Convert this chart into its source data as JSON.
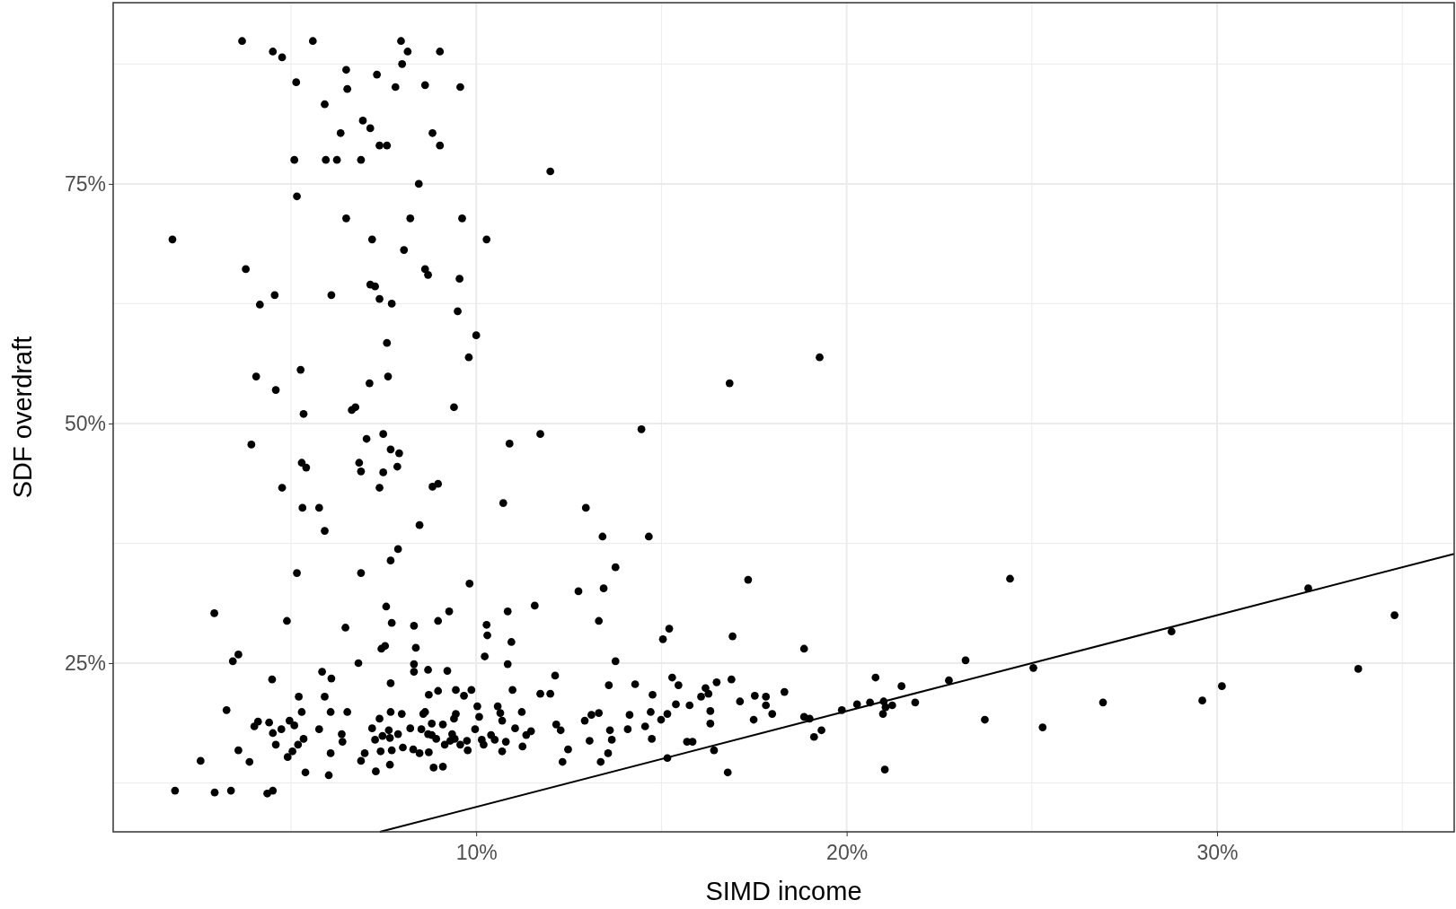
{
  "chart_data": {
    "type": "scatter",
    "xlabel": "SIMD income",
    "ylabel": "SDF overdraft",
    "xlim": [
      0.2,
      36.4
    ],
    "ylim": [
      7.4,
      93.9
    ],
    "xticks": [
      {
        "value": 5,
        "label": null
      },
      {
        "value": 10,
        "label": "10%"
      },
      {
        "value": 15,
        "label": null
      },
      {
        "value": 20,
        "label": "20%"
      },
      {
        "value": 25,
        "label": null
      },
      {
        "value": 30,
        "label": "30%"
      },
      {
        "value": 35,
        "label": null
      }
    ],
    "yticks": [
      {
        "value": 12.5,
        "label": null
      },
      {
        "value": 25,
        "label": "25%"
      },
      {
        "value": 37.5,
        "label": null
      },
      {
        "value": 50,
        "label": "50%"
      },
      {
        "value": 62.5,
        "label": null
      },
      {
        "value": 75,
        "label": "75%"
      },
      {
        "value": 87.5,
        "label": null
      }
    ],
    "grid": true,
    "series": [
      {
        "color": "#000000",
        "marker": "circle",
        "x": [
          3.68,
          4.51,
          4.76,
          5.59,
          7.97,
          8.15,
          9.02,
          8.0,
          6.49,
          7.32,
          5.14,
          7.82,
          8.62,
          9.57,
          6.52,
          5.91,
          6.94,
          7.14,
          6.34,
          8.82,
          7.39,
          7.59,
          9.02,
          5.09,
          5.94,
          6.24,
          6.89,
          12.0,
          8.45,
          5.16,
          6.49,
          8.22,
          9.62,
          1.8,
          7.19,
          10.28,
          8.05,
          3.78,
          8.62,
          8.7,
          9.55,
          7.14,
          7.27,
          4.56,
          6.09,
          7.39,
          4.16,
          7.72,
          9.5,
          10.0,
          7.59,
          19.27,
          9.8,
          5.26,
          4.06,
          7.62,
          16.84,
          7.12,
          4.59,
          6.74,
          9.4,
          5.34,
          6.64,
          14.46,
          7.49,
          11.73,
          7.04,
          7.69,
          7.92,
          3.93,
          10.9,
          5.29,
          6.84,
          5.41,
          7.87,
          6.89,
          7.49,
          8.97,
          8.82,
          4.76,
          7.39,
          10.73,
          12.96,
          5.31,
          5.76,
          5.91,
          8.47,
          13.41,
          14.66,
          7.89,
          7.69,
          13.76,
          5.16,
          6.89,
          17.34,
          24.41,
          9.82,
          13.44,
          12.76,
          32.46,
          7.57,
          9.27,
          10.85,
          11.58,
          2.93,
          34.79,
          10.28,
          13.31,
          4.89,
          8.97,
          7.72,
          8.32,
          6.47,
          15.21,
          10.3,
          28.77,
          16.92,
          15.04,
          10.95,
          7.54,
          7.44,
          8.37,
          18.85,
          3.58,
          10.23,
          13.76,
          23.21,
          3.43,
          6.82,
          10.85,
          8.32,
          25.04,
          33.81,
          8.32,
          9.22,
          5.84,
          8.7,
          12.13,
          6.09,
          15.29,
          20.78,
          16.89,
          22.76,
          4.49,
          7.69,
          13.58,
          16.49,
          15.46,
          21.48,
          14.29,
          30.13,
          10.98,
          16.19,
          9.45,
          9.87,
          8.97,
          18.32,
          11.73,
          12.0,
          14.76,
          16.27,
          17.52,
          17.82,
          9.67,
          8.72,
          5.21,
          5.91,
          16.07,
          17.12,
          29.6,
          26.92,
          21.85,
          21.0,
          20.28,
          20.63,
          21.05,
          21.23,
          15.76,
          15.39,
          17.82,
          10.03,
          10.58,
          19.87,
          20.98,
          17.99,
          16.32,
          3.26,
          5.29,
          6.07,
          6.52,
          7.69,
          7.99,
          8.62,
          8.57,
          9.45,
          10.65,
          11.23,
          13.31,
          13.11,
          14.14,
          14.71,
          15.16,
          18.85,
          19.0,
          23.73,
          17.49,
          7.39,
          9.4,
          10.08,
          10.7,
          12.93,
          14.99,
          4.96,
          4.11,
          4.41,
          4.01,
          5.09,
          8.8,
          9.1,
          12.16,
          14.56,
          16.32,
          25.29,
          7.19,
          7.64,
          8.22,
          8.52,
          4.74,
          9.97,
          11.05,
          5.76,
          12.28,
          11.48,
          13.61,
          14.09,
          19.32,
          4.51,
          6.37,
          7.47,
          7.89,
          8.7,
          8.8,
          9.35,
          11.35,
          10.4,
          19.12,
          5.34,
          7.27,
          7.67,
          8.92,
          9.3,
          9.42,
          9.75,
          10.15,
          10.5,
          10.8,
          13.66,
          13.06,
          14.74,
          15.69,
          15.84,
          3.58,
          5.19,
          6.39,
          8.02,
          9.15,
          9.57,
          10.2,
          11.25,
          4.59,
          5.04,
          6.07,
          6.99,
          7.42,
          7.72,
          8.3,
          8.47,
          8.72,
          9.77,
          10.7,
          12.48,
          13.56,
          15.16,
          4.91,
          6.89,
          2.56,
          3.88,
          7.67,
          12.33,
          13.36,
          8.85,
          9.1,
          16.42,
          7.29,
          5.39,
          6.02,
          16.79,
          21.03,
          1.87,
          2.94,
          3.38,
          4.36,
          4.51
        ],
        "values": [
          89.9,
          88.8,
          88.2,
          89.9,
          89.9,
          88.8,
          88.8,
          87.5,
          86.9,
          86.4,
          85.6,
          85.1,
          85.3,
          85.1,
          84.9,
          83.3,
          81.6,
          80.8,
          80.3,
          80.3,
          79.0,
          79.0,
          79.0,
          77.5,
          77.5,
          77.5,
          77.5,
          76.3,
          75.0,
          73.7,
          71.4,
          71.4,
          71.4,
          69.2,
          69.2,
          69.2,
          68.1,
          66.1,
          66.1,
          65.5,
          65.1,
          64.5,
          64.3,
          63.4,
          63.4,
          63.0,
          62.4,
          62.5,
          61.7,
          59.2,
          58.4,
          56.9,
          56.9,
          55.6,
          54.9,
          54.9,
          54.2,
          54.2,
          53.5,
          51.7,
          51.7,
          51.0,
          51.4,
          49.4,
          48.9,
          48.9,
          48.4,
          47.3,
          46.9,
          47.8,
          47.9,
          45.9,
          45.9,
          45.4,
          45.5,
          45.0,
          44.9,
          43.7,
          43.4,
          43.3,
          43.3,
          41.7,
          41.2,
          41.2,
          41.2,
          38.8,
          39.4,
          38.2,
          38.2,
          36.9,
          35.7,
          35.0,
          34.4,
          34.4,
          33.7,
          33.8,
          33.3,
          32.8,
          32.5,
          32.8,
          30.9,
          30.4,
          30.4,
          31.0,
          30.2,
          30.0,
          29.0,
          29.4,
          29.4,
          29.4,
          29.2,
          28.9,
          28.7,
          28.6,
          27.9,
          28.3,
          27.8,
          27.5,
          27.2,
          26.8,
          26.5,
          26.6,
          26.5,
          25.9,
          25.7,
          25.2,
          25.3,
          25.2,
          25.0,
          24.9,
          24.9,
          24.5,
          24.4,
          24.1,
          24.2,
          24.1,
          24.3,
          23.7,
          23.4,
          23.5,
          23.5,
          23.3,
          23.2,
          23.3,
          22.9,
          22.7,
          23.0,
          22.7,
          22.6,
          22.8,
          22.6,
          22.2,
          22.4,
          22.2,
          22.2,
          22.1,
          22.0,
          21.8,
          21.8,
          21.7,
          21.8,
          21.6,
          21.5,
          21.6,
          21.7,
          21.5,
          21.5,
          21.5,
          21.0,
          21.1,
          20.9,
          20.9,
          21.0,
          20.7,
          20.9,
          20.4,
          20.6,
          20.6,
          20.7,
          20.6,
          20.5,
          20.5,
          20.1,
          19.7,
          19.7,
          20.0,
          20.1,
          19.9,
          19.9,
          19.9,
          19.9,
          19.7,
          19.9,
          19.7,
          19.7,
          19.8,
          19.9,
          19.8,
          19.6,
          19.6,
          19.9,
          19.7,
          19.4,
          19.2,
          19.1,
          19.1,
          19.2,
          19.2,
          19.4,
          19.0,
          19.0,
          19.1,
          19.0,
          18.9,
          18.8,
          18.4,
          18.5,
          18.7,
          18.6,
          18.6,
          18.4,
          18.7,
          18.3,
          18.2,
          18.0,
          18.2,
          18.1,
          18.1,
          18.1,
          18.2,
          18.1,
          18.0,
          17.9,
          18.0,
          18.1,
          18.0,
          17.7,
          17.6,
          17.4,
          17.6,
          17.6,
          17.5,
          17.6,
          17.5,
          17.5,
          17.3,
          17.1,
          17.0,
          17.2,
          17.1,
          16.9,
          17.1,
          16.9,
          17.0,
          17.0,
          16.8,
          17.0,
          16.9,
          17.1,
          16.8,
          16.8,
          15.9,
          16.5,
          16.8,
          16.2,
          16.5,
          16.5,
          16.5,
          16.3,
          16.5,
          15.8,
          15.6,
          15.6,
          15.8,
          15.9,
          16.0,
          15.6,
          15.7,
          15.9,
          15.8,
          16.0,
          15.6,
          15.1,
          15.2,
          14.8,
          14.8,
          14.7,
          14.4,
          14.7,
          14.7,
          14.1,
          14.2,
          15.9,
          13.7,
          13.6,
          13.3,
          13.6,
          13.9,
          11.7,
          11.5,
          11.7,
          11.4,
          11.7
        ]
      },
      {
        "type": "line",
        "color": "#000000",
        "marker": "none",
        "line_style": "solid",
        "x": [
          7.4,
          36.4
        ],
        "values": [
          7.4,
          36.4
        ]
      }
    ]
  }
}
